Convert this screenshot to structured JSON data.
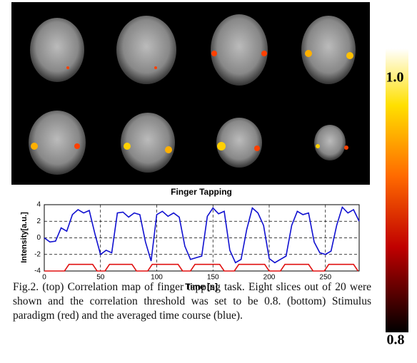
{
  "chart_data": {
    "type": "line",
    "title": "Finger Tapping",
    "xlabel": "Time [s]",
    "ylabel": "Intensity[a.u.]",
    "xlim": [
      0,
      280
    ],
    "xticks": [
      0,
      50,
      100,
      150,
      200,
      250
    ],
    "ylim": [
      -4,
      4
    ],
    "yticks": [
      -4,
      -2,
      0,
      2,
      4
    ],
    "grid": true,
    "series": [
      {
        "color": "#1010d0",
        "x": [
          0,
          5,
          10,
          15,
          20,
          25,
          30,
          35,
          40,
          45,
          50,
          55,
          60,
          65,
          70,
          75,
          80,
          85,
          90,
          95,
          100,
          105,
          110,
          115,
          120,
          125,
          130,
          135,
          140,
          145,
          150,
          155,
          160,
          165,
          170,
          175,
          180,
          185,
          190,
          195,
          200,
          205,
          210,
          215,
          220,
          225,
          230,
          235,
          240,
          245,
          250,
          255,
          260,
          265,
          270,
          275,
          280
        ],
        "values": [
          0,
          -0.5,
          -0.4,
          1.2,
          0.8,
          2.8,
          3.4,
          3.0,
          3.3,
          0.5,
          -2.0,
          -1.5,
          -1.8,
          3.0,
          3.1,
          2.5,
          3.0,
          2.8,
          -0.5,
          -2.8,
          2.8,
          3.2,
          2.6,
          3.0,
          2.5,
          -1.0,
          -2.6,
          -2.4,
          -2.2,
          2.6,
          3.6,
          2.9,
          3.2,
          -1.5,
          -3.0,
          -2.6,
          1.0,
          3.6,
          3.0,
          1.5,
          -2.5,
          -3.0,
          -2.6,
          -2.2,
          1.5,
          3.2,
          2.8,
          3.0,
          -0.5,
          -1.8,
          -2.0,
          -1.6,
          1.5,
          3.7,
          3.0,
          3.4,
          2.0
        ]
      },
      {
        "color": "#e01010",
        "x": [
          0,
          18,
          22,
          43,
          47,
          54,
          58,
          78,
          82,
          92,
          96,
          119,
          123,
          130,
          134,
          156,
          160,
          169,
          173,
          196,
          200,
          210,
          214,
          235,
          239,
          249,
          253,
          275,
          279
        ],
        "values": [
          -4,
          -4,
          -3.2,
          -3.2,
          -4,
          -4,
          -3.2,
          -3.2,
          -4,
          -4,
          -3.2,
          -3.2,
          -4,
          -4,
          -3.2,
          -3.2,
          -4,
          -4,
          -3.2,
          -3.2,
          -4,
          -4,
          -3.2,
          -3.2,
          -4,
          -4,
          -3.2,
          -3.2,
          -4
        ]
      }
    ]
  },
  "colorbar": {
    "top_label": "1.0",
    "bottom_label": "0.8"
  },
  "caption": "Fig.2. (top) Correlation map of finger tapping task. Eight slices out of 20 were shown and the correlation threshold was set to be 0.8. (bottom) Stimulus paradigm (red) and the averaged time course (blue)."
}
